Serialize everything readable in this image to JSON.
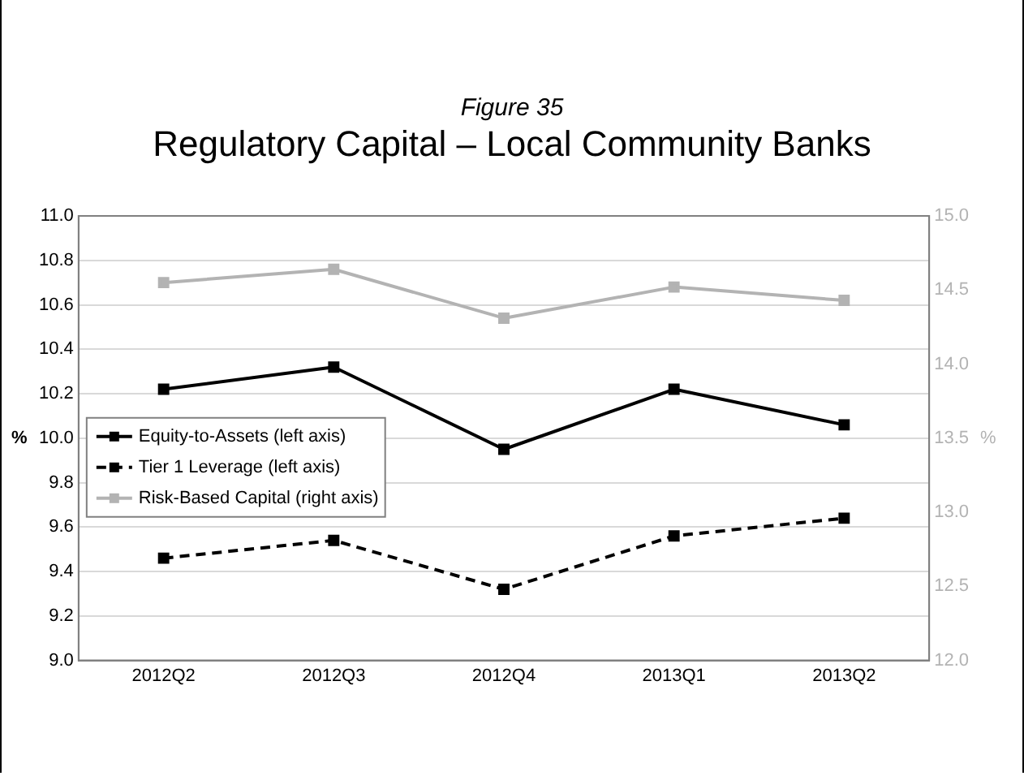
{
  "chart_data": {
    "type": "line",
    "subtitle": "Figure 35",
    "title": "Regulatory Capital – Local Community Banks",
    "categories": [
      "2012Q2",
      "2012Q3",
      "2012Q4",
      "2013Q1",
      "2013Q2"
    ],
    "series": [
      {
        "name": "Equity-to-Assets (left axis)",
        "color": "#000000",
        "values": [
          10.22,
          10.32,
          9.95,
          10.22,
          10.06
        ],
        "line_style": "solid"
      },
      {
        "name": "Tier 1 Leverage (left axis)",
        "color": "#000000",
        "values": [
          9.46,
          9.54,
          9.32,
          9.56,
          9.64
        ],
        "line_style": "dashed"
      },
      {
        "name": "Risk-Based Capital (right axis)",
        "color": "#b3b3b3",
        "values": [
          14.55,
          14.64,
          14.31,
          14.52,
          14.43
        ],
        "axis": "y2",
        "line_style": "solid"
      }
    ],
    "ylabel": "%",
    "y2label": "%",
    "ylim": [
      9,
      11
    ],
    "yticks": [
      {
        "value": 9,
        "label": "9.0"
      },
      9.2,
      9.4,
      9.6,
      9.8,
      {
        "value": 10,
        "label": "10.0"
      },
      10.2,
      10.4,
      10.6,
      10.8,
      {
        "value": 11,
        "label": "11.0"
      }
    ],
    "y2lim": [
      12,
      15
    ],
    "y2ticks": [
      {
        "value": 12,
        "label": "12.0"
      },
      12.5,
      {
        "value": 13,
        "label": "13.0"
      },
      13.5,
      {
        "value": 14,
        "label": "14.0"
      },
      14.5,
      {
        "value": 15,
        "label": "15.0"
      }
    ],
    "grid": "y",
    "legend": "left",
    "marker": "square"
  }
}
